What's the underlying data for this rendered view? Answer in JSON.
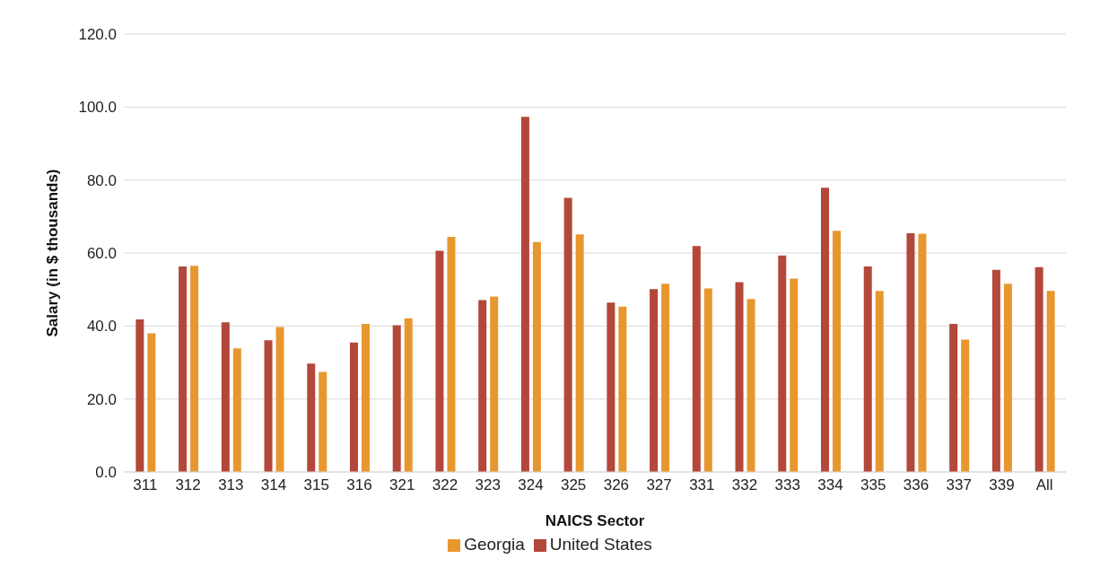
{
  "chart_data": {
    "type": "bar",
    "xlabel": "NAICS Sector",
    "ylabel": "Salary (in $ thousands)",
    "categories": [
      "311",
      "312",
      "313",
      "314",
      "315",
      "316",
      "321",
      "322",
      "323",
      "324",
      "325",
      "326",
      "327",
      "331",
      "332",
      "333",
      "334",
      "335",
      "336",
      "337",
      "339",
      "All"
    ],
    "series": [
      {
        "name": "United States",
        "color": "#b3473a",
        "values": [
          41.8,
          56.3,
          41.0,
          36.1,
          29.7,
          35.5,
          40.2,
          60.6,
          47.1,
          97.3,
          75.1,
          46.4,
          50.1,
          61.9,
          52.0,
          59.3,
          77.9,
          56.3,
          65.4,
          40.6,
          55.4,
          56.1
        ]
      },
      {
        "name": "Georgia",
        "color": "#e8972f",
        "values": [
          38.0,
          56.5,
          33.9,
          39.7,
          27.4,
          40.6,
          42.1,
          64.4,
          48.1,
          63.0,
          65.1,
          45.3,
          51.6,
          50.3,
          47.4,
          53.0,
          66.1,
          49.6,
          65.3,
          36.3,
          51.6,
          49.6
        ]
      }
    ],
    "ylim": [
      0,
      120
    ],
    "yticks": [
      {
        "value": 0,
        "label": "0.0"
      },
      {
        "value": 20,
        "label": "20.0"
      },
      {
        "value": 40,
        "label": "40.0"
      },
      {
        "value": 60,
        "label": "60.0"
      },
      {
        "value": 80,
        "label": "80.0"
      },
      {
        "value": 100,
        "label": "100.0"
      },
      {
        "value": 120,
        "label": "120.0"
      }
    ],
    "grid": "y",
    "legend": "bottom"
  }
}
